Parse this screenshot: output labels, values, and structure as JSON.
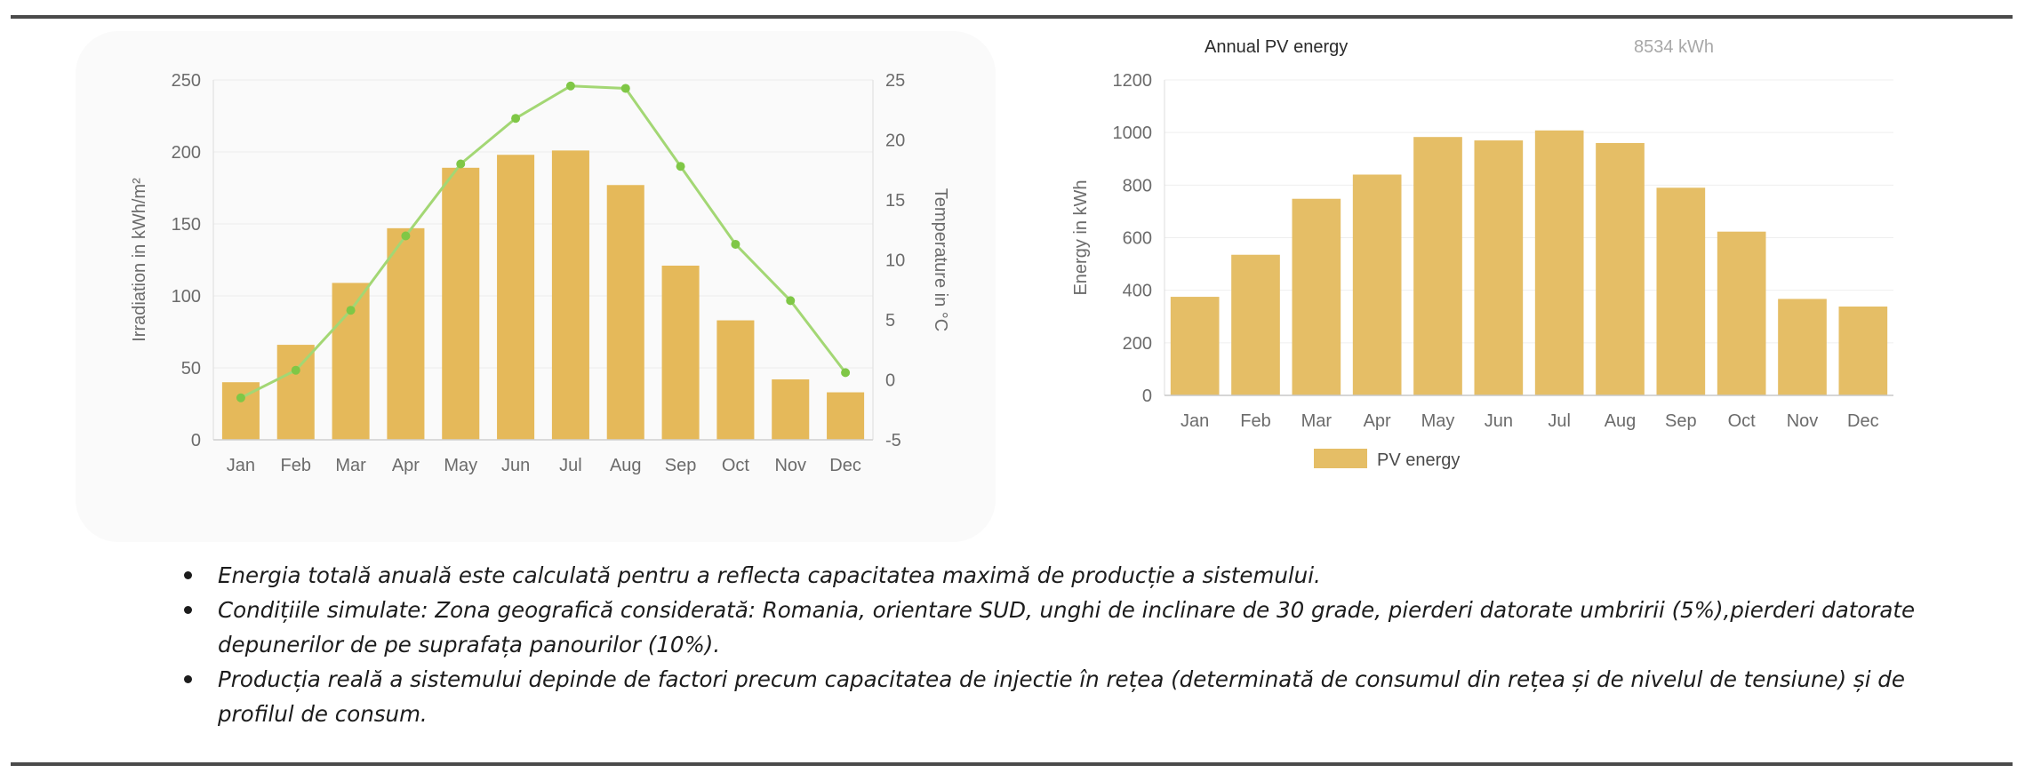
{
  "chart_data": [
    {
      "type": "bar",
      "categories": [
        "Jan",
        "Feb",
        "Mar",
        "Apr",
        "May",
        "Jun",
        "Jul",
        "Aug",
        "Sep",
        "Oct",
        "Nov",
        "Dec"
      ],
      "series": [
        {
          "type": "bar",
          "axis": "left",
          "values": [
            40,
            66,
            109,
            147,
            189,
            198,
            201,
            177,
            121,
            83,
            42,
            33
          ]
        },
        {
          "type": "line",
          "axis": "right",
          "values": [
            -1.5,
            0.8,
            5.8,
            12,
            18,
            21.8,
            24.5,
            24.3,
            17.8,
            11.3,
            6.6,
            0.6
          ]
        }
      ],
      "ylabel": "Irradiation in kWh/m²",
      "ylabel_right": "Temperature in °C",
      "ylim": [
        0,
        250
      ],
      "ylim_right": [
        -5,
        25
      ],
      "yticks": [
        "0",
        "50",
        "100",
        "150",
        "200",
        "250"
      ],
      "yticks_right": [
        "-5",
        "0",
        "5",
        "10",
        "15",
        "20",
        "25"
      ],
      "bar_color": "#e5b95a",
      "line_color": "#a3d774",
      "point_color": "#7fc746",
      "grid": true
    },
    {
      "type": "bar",
      "title": "Annual PV energy",
      "value_label": "8534 kWh",
      "categories": [
        "Jan",
        "Feb",
        "Mar",
        "Apr",
        "May",
        "Jun",
        "Jul",
        "Aug",
        "Sep",
        "Oct",
        "Nov",
        "Dec"
      ],
      "series": [
        {
          "name": "PV energy",
          "values": [
            375,
            535,
            748,
            840,
            983,
            970,
            1008,
            960,
            790,
            623,
            367,
            338
          ]
        }
      ],
      "ylabel": "Energy in kWh",
      "ylim": [
        0,
        1200
      ],
      "yticks": [
        "0",
        "200",
        "400",
        "600",
        "800",
        "1000",
        "1200"
      ],
      "bar_color": "#e5be66",
      "legend_position": "bottom",
      "grid": true
    }
  ],
  "notes": [
    "Energia totală anuală este calculată pentru a reflecta capacitatea maximă de producție a sistemului.",
    "Condițiile simulate: Zona geografică considerată: Romania, orientare SUD, unghi de inclinare de 30 grade, pierderi datorate umbririi (5%),pierderi datorate depunerilor de pe suprafața panourilor (10%).",
    "Producția reală a sistemului depinde de factori precum capacitatea de injectie în rețea (determinată de consumul din rețea și de nivelul de tensiune) și de profilul de consum."
  ]
}
